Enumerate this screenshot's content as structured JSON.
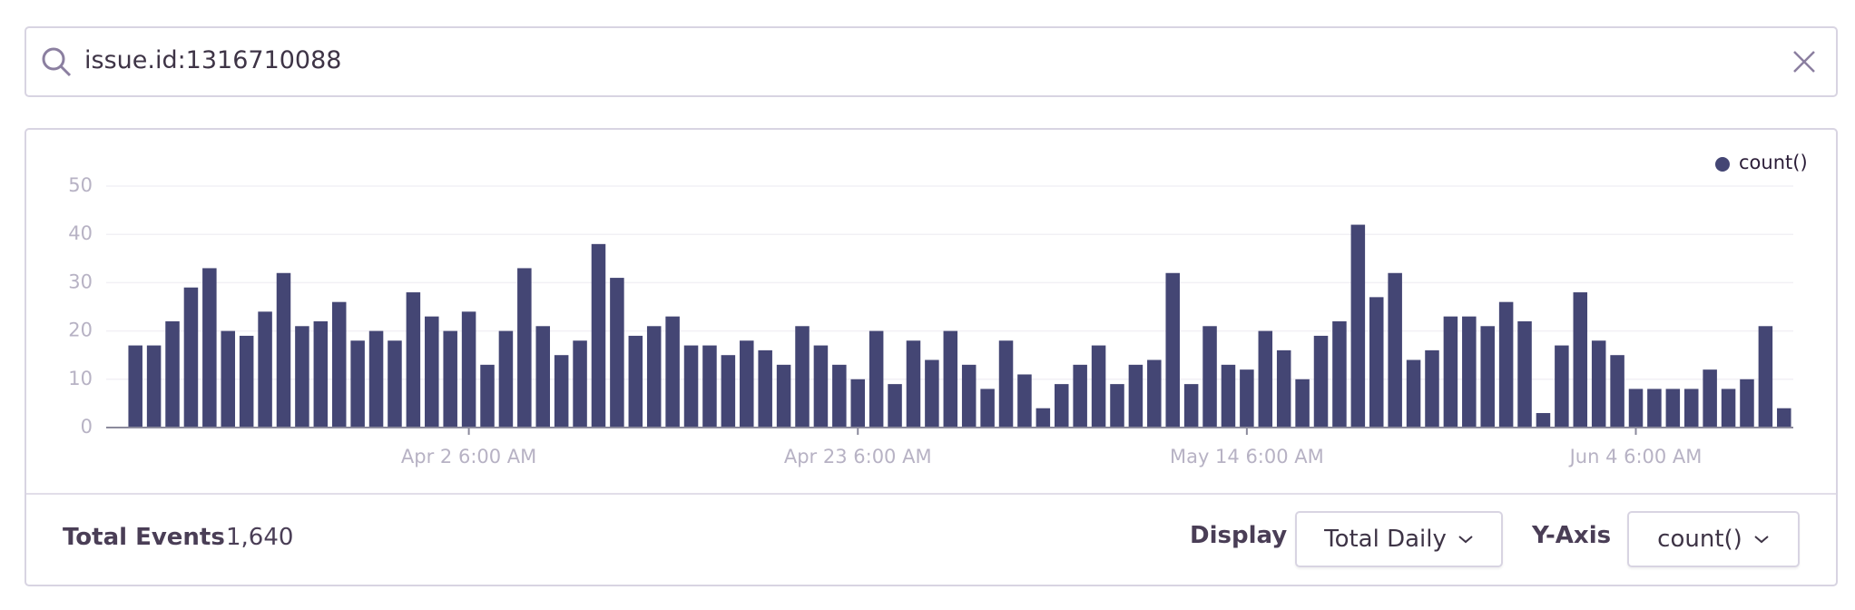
{
  "search": {
    "query": "issue.id:1316710088"
  },
  "chart_data": {
    "type": "bar",
    "categories": [
      null,
      null,
      null,
      null,
      null,
      null,
      null,
      null,
      null,
      null,
      null,
      null,
      null,
      null,
      null,
      null,
      null,
      null,
      "Apr 2 6:00 AM",
      null,
      null,
      null,
      null,
      null,
      null,
      null,
      null,
      null,
      null,
      null,
      null,
      null,
      null,
      null,
      null,
      null,
      null,
      null,
      null,
      "Apr 23 6:00 AM",
      null,
      null,
      null,
      null,
      null,
      null,
      null,
      null,
      null,
      null,
      null,
      null,
      null,
      null,
      null,
      null,
      null,
      null,
      null,
      null,
      "May 14 6:00 AM",
      null,
      null,
      null,
      null,
      null,
      null,
      null,
      null,
      null,
      null,
      null,
      null,
      null,
      null,
      null,
      null,
      null,
      null,
      null,
      null,
      "Jun 4 6:00 AM",
      null,
      null,
      null,
      null,
      null,
      null,
      null,
      null
    ],
    "series": [
      {
        "name": "count()",
        "color": "#444674",
        "values": [
          17,
          17,
          22,
          29,
          33,
          20,
          19,
          24,
          32,
          21,
          22,
          26,
          18,
          20,
          18,
          28,
          23,
          20,
          24,
          13,
          20,
          33,
          21,
          15,
          18,
          38,
          31,
          19,
          21,
          23,
          17,
          17,
          15,
          18,
          16,
          13,
          21,
          17,
          13,
          10,
          20,
          9,
          18,
          14,
          20,
          13,
          8,
          18,
          11,
          4,
          9,
          13,
          17,
          9,
          13,
          14,
          32,
          9,
          21,
          13,
          12,
          20,
          16,
          10,
          19,
          22,
          42,
          27,
          32,
          14,
          16,
          23,
          23,
          21,
          26,
          22,
          3,
          17,
          28,
          18,
          15,
          8,
          8,
          8,
          8,
          12,
          8,
          10,
          21,
          4
        ]
      }
    ],
    "ylim": [
      0,
      50
    ],
    "yticks": [
      0,
      10,
      20,
      30,
      40,
      50
    ],
    "grid": true,
    "legend": "top-right"
  },
  "footer": {
    "total_label": "Total Events",
    "total_value": "1,640",
    "display_label": "Display",
    "display_value": "Total Daily",
    "yaxis_label": "Y-Axis",
    "yaxis_value": "count()"
  }
}
